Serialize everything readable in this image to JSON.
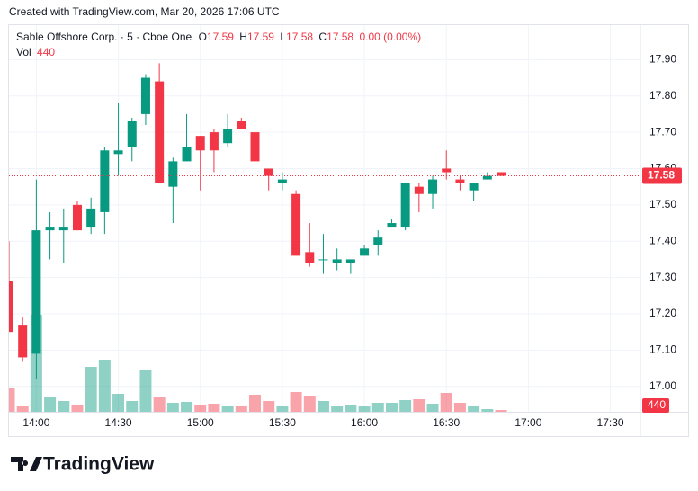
{
  "header": "Created with TradingView.com, Mar 20, 2026 17:06 UTC",
  "chart_data": {
    "type": "candlestick",
    "title": "Sable Offshore Corp. · 5 · Cboe One",
    "ohlc_labels": [
      "O",
      "H",
      "L",
      "C"
    ],
    "change": "0.00 (0.00%)",
    "volume_label": "Vol",
    "up_color": "#089981",
    "down_color": "#f23645",
    "x": [
      "13:50",
      "13:55",
      "14:00",
      "14:05",
      "14:10",
      "14:15",
      "14:20",
      "14:25",
      "14:30",
      "14:35",
      "14:40",
      "14:45",
      "14:50",
      "14:55",
      "15:00",
      "15:05",
      "15:10",
      "15:15",
      "15:20",
      "15:25",
      "15:30",
      "15:35",
      "15:40",
      "15:45",
      "15:50",
      "15:55",
      "16:00",
      "16:05",
      "16:10",
      "16:15",
      "16:20",
      "16:25",
      "16:30",
      "16:35",
      "16:40",
      "16:45",
      "16:50"
    ],
    "open": [
      17.29,
      17.17,
      17.09,
      17.43,
      17.43,
      17.5,
      17.44,
      17.48,
      17.64,
      17.66,
      17.75,
      17.84,
      17.55,
      17.62,
      17.69,
      17.7,
      17.67,
      17.73,
      17.7,
      17.6,
      17.56,
      17.53,
      17.37,
      17.35,
      17.34,
      17.34,
      17.36,
      17.39,
      17.44,
      17.44,
      17.55,
      17.53,
      17.6,
      17.57,
      17.54,
      17.57,
      17.59
    ],
    "high": [
      17.4,
      17.19,
      17.57,
      17.48,
      17.49,
      17.51,
      17.52,
      17.66,
      17.78,
      17.74,
      17.86,
      17.89,
      17.63,
      17.75,
      17.69,
      17.71,
      17.75,
      17.74,
      17.75,
      17.6,
      17.59,
      17.54,
      17.45,
      17.42,
      17.38,
      17.35,
      17.39,
      17.43,
      17.46,
      17.56,
      17.56,
      17.58,
      17.65,
      17.58,
      17.56,
      17.59,
      17.59
    ],
    "low": [
      17.15,
      17.07,
      17.02,
      17.35,
      17.34,
      17.43,
      17.42,
      17.42,
      17.58,
      17.62,
      17.72,
      17.56,
      17.45,
      17.62,
      17.54,
      17.59,
      17.66,
      17.71,
      17.61,
      17.54,
      17.54,
      17.36,
      17.33,
      17.31,
      17.32,
      17.31,
      17.36,
      17.36,
      17.44,
      17.43,
      17.48,
      17.49,
      17.57,
      17.54,
      17.51,
      17.57,
      17.58
    ],
    "close": [
      17.15,
      17.08,
      17.43,
      17.44,
      17.44,
      17.43,
      17.49,
      17.65,
      17.65,
      17.73,
      17.85,
      17.56,
      17.62,
      17.66,
      17.65,
      17.65,
      17.71,
      17.71,
      17.62,
      17.58,
      17.57,
      17.36,
      17.34,
      17.35,
      17.35,
      17.35,
      17.38,
      17.41,
      17.45,
      17.56,
      17.53,
      17.57,
      17.59,
      17.56,
      17.56,
      17.58,
      17.58
    ],
    "volume": [
      5720,
      1320,
      23760,
      3520,
      2640,
      1760,
      11000,
      12760,
      4400,
      2640,
      10120,
      3520,
      2200,
      2420,
      1760,
      1980,
      1320,
      1320,
      4180,
      2640,
      1320,
      4840,
      3960,
      2640,
      1320,
      1760,
      1320,
      2200,
      2200,
      2860,
      3080,
      1980,
      4620,
      2200,
      1320,
      660,
      440
    ],
    "xlim": [
      "13:50",
      "17:41"
    ],
    "xticks": [
      "14:00",
      "14:30",
      "15:00",
      "15:30",
      "16:00",
      "16:30",
      "17:00",
      "17:30"
    ],
    "ylim": [
      16.93,
      17.99
    ],
    "yticks": [
      {
        "value": 17,
        "label": "17.00"
      },
      {
        "value": 17.1,
        "label": "17.10"
      },
      {
        "value": 17.2,
        "label": "17.20"
      },
      {
        "value": 17.3,
        "label": "17.30"
      },
      {
        "value": 17.4,
        "label": "17.40"
      },
      {
        "value": 17.5,
        "label": "17.50"
      },
      {
        "value": 17.6,
        "label": "17.60"
      },
      {
        "value": 17.7,
        "label": "17.70"
      },
      {
        "value": 17.8,
        "label": "17.80"
      },
      {
        "value": 17.9,
        "label": "17.90"
      }
    ],
    "grid": true
  },
  "footer": "TradingView"
}
